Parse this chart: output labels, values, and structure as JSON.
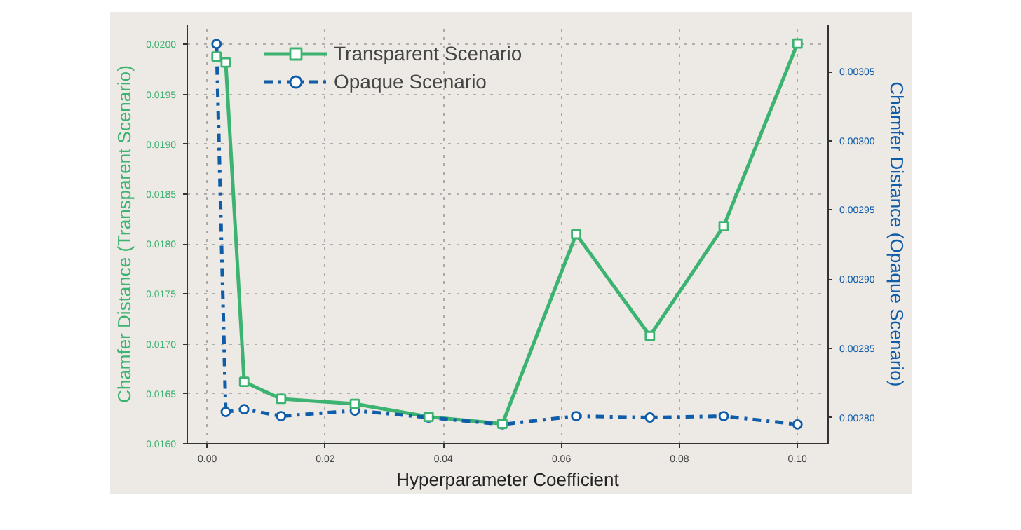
{
  "chart_data": {
    "type": "line",
    "xlabel": "Hyperparameter Coefficient",
    "ylabel": "Chamfer Distance (Transparent Scenario)",
    "y2label": "Chamfer Distance (Opaque Scenario)",
    "x": [
      0.0015625,
      0.003125,
      0.00625,
      0.0125,
      0.025,
      0.0375,
      0.05,
      0.0625,
      0.075,
      0.0875,
      0.1
    ],
    "series": [
      {
        "name": "Transparent Scenario",
        "color": "#3cb371",
        "marker": "square",
        "line_style": "solid",
        "values": [
          0.01988,
          0.01982,
          0.01662,
          0.01645,
          0.0164,
          0.01627,
          0.0162,
          0.0181,
          0.01708,
          0.01818,
          0.02001
        ]
      },
      {
        "name": "Opaque Scenario",
        "color": "#0f5ca8",
        "marker": "circle",
        "line_style": "dashdot",
        "axis": "y2",
        "values": [
          0.00307,
          0.002804,
          0.002806,
          0.002801,
          0.002805,
          0.0028,
          0.002795,
          0.002801,
          0.0028,
          0.002801,
          0.002795
        ]
      }
    ],
    "xlim": [
      -0.0034,
      0.1052
    ],
    "xticks": [
      {
        "value": 0,
        "label": "0.00"
      },
      {
        "value": 0.02,
        "label": "0.02"
      },
      {
        "value": 0.04,
        "label": "0.04"
      },
      {
        "value": 0.06,
        "label": "0.06"
      },
      {
        "value": 0.08,
        "label": "0.08"
      },
      {
        "value": 0.1,
        "label": "0.10"
      }
    ],
    "ylim": [
      0.016,
      0.0202
    ],
    "yticks": [
      {
        "value": 0.016,
        "label": "0.0160"
      },
      {
        "value": 0.0165,
        "label": "0.0165"
      },
      {
        "value": 0.017,
        "label": "0.0170"
      },
      {
        "value": 0.0175,
        "label": "0.0175"
      },
      {
        "value": 0.018,
        "label": "0.0180"
      },
      {
        "value": 0.0185,
        "label": "0.0185"
      },
      {
        "value": 0.019,
        "label": "0.0190"
      },
      {
        "value": 0.0195,
        "label": "0.0195"
      },
      {
        "value": 0.02,
        "label": "0.0200"
      }
    ],
    "y2lim": [
      0.002781,
      0.003084
    ],
    "y2ticks": [
      {
        "value": 0.0028,
        "label": "0.00280"
      },
      {
        "value": 0.00285,
        "label": "0.00285"
      },
      {
        "value": 0.0029,
        "label": "0.00290"
      },
      {
        "value": 0.00295,
        "label": "0.00295"
      },
      {
        "value": 0.003,
        "label": "0.00300"
      },
      {
        "value": 0.00305,
        "label": "0.00305"
      }
    ],
    "grid": true,
    "legend": "top left"
  }
}
